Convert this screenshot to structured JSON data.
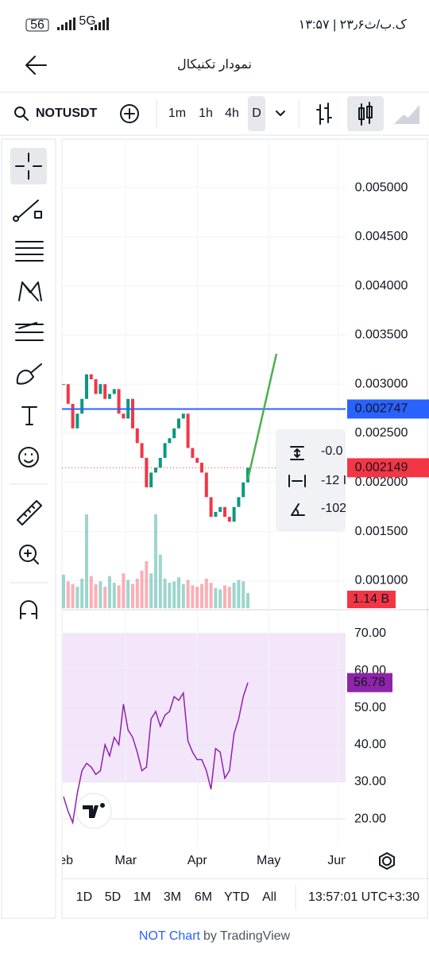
{
  "status_bar": {
    "battery": "56",
    "network": "5G",
    "time": "۱۳:۵۷ | ۲۳٫۶ک.ب/ث"
  },
  "header": {
    "title": "نمودار تکنیکال"
  },
  "toolbar": {
    "symbol": "NOTUSDT",
    "intervals": [
      "1m",
      "1h",
      "4h",
      "D"
    ]
  },
  "measure": [
    "-0.0",
    "-12 I",
    "-102"
  ],
  "range_bar": {
    "ranges": [
      "1D",
      "5D",
      "1M",
      "3M",
      "6M",
      "YTD",
      "All"
    ],
    "clock": "13:57:01 UTC+3:30"
  },
  "footer": {
    "brand": "NOT Chart",
    "by": "by TradingView"
  },
  "chart_data": {
    "type": "candlestick",
    "values": [
      0.003,
      0.0028,
      0.00255,
      0.0027,
      0.00285,
      0.0031,
      0.00305,
      0.0029,
      0.003,
      0.00285,
      0.0029,
      0.00295,
      0.0027,
      0.00265,
      0.00285,
      0.00255,
      0.0024,
      0.00225,
      0.00195,
      0.0021,
      0.00215,
      0.00225,
      0.0024,
      0.00245,
      0.00255,
      0.00265,
      0.0027,
      0.00235,
      0.00225,
      0.0022,
      0.0021,
      0.00185,
      0.00165,
      0.0017,
      0.00175,
      0.00165,
      0.0016,
      0.00175,
      0.00185,
      0.002,
      0.00215
    ],
    "up_color": "#089981",
    "down_color": "#f23645",
    "xlim": [
      -0.34,
      61.2
    ],
    "xticks": [
      {
        "value": -0.3,
        "label": "Feb"
      },
      {
        "value": 13.5,
        "label": "Mar"
      },
      {
        "value": 29,
        "label": "Apr"
      },
      {
        "value": 44.5,
        "label": "May"
      },
      {
        "value": 59.5,
        "label": "Jun"
      }
    ],
    "ylim": [
      0.00072,
      0.005494
    ],
    "yticks": [
      {
        "value": 0.001,
        "label": "0.001000"
      },
      {
        "value": 0.0015,
        "label": "0.001500"
      },
      {
        "value": 0.002,
        "label": "0.002000"
      },
      {
        "value": 0.0025,
        "label": "0.002500"
      },
      {
        "value": 0.003,
        "label": "0.003000"
      },
      {
        "value": 0.0035,
        "label": "0.003500"
      },
      {
        "value": 0.004,
        "label": "0.004000"
      },
      {
        "value": 0.0045,
        "label": "0.004500"
      },
      {
        "value": 0.005,
        "label": "0.005000"
      }
    ],
    "grid": true,
    "level": {
      "value": 0.002747,
      "color": "#2962ff"
    },
    "last_price": {
      "value": 0.002149,
      "color": "#f23645"
    },
    "volume": {
      "values": [
        2.5,
        2,
        1.8,
        1.6,
        2.2,
        7,
        2.4,
        1.8,
        2,
        1.6,
        2.4,
        1.9,
        1.7,
        2.6,
        2.1,
        1.8,
        2.2,
        2.8,
        3.5,
        2.6,
        7,
        4,
        2.2,
        1.9,
        2,
        2.3,
        1.8,
        2.1,
        1.7,
        1.6,
        1.8,
        2.2,
        1.9,
        1.5,
        1.4,
        1.7,
        1.6,
        1.9,
        2.1,
        2,
        1.14
      ],
      "ylim": [
        0,
        35
      ],
      "value_label": "1.14 B"
    },
    "rsi": {
      "values": [
        26,
        22,
        19,
        27,
        33,
        35,
        34,
        32,
        33,
        40,
        37,
        42,
        40,
        51,
        44,
        42,
        38,
        33,
        34,
        47,
        49,
        45,
        48,
        49,
        53,
        52,
        54,
        41,
        38,
        36,
        36,
        33,
        28,
        39,
        38,
        31,
        33,
        43,
        47,
        53,
        56.78
      ],
      "color": "#8e24aa",
      "band": [
        30,
        70
      ],
      "ylim": [
        12.5,
        75.8
      ],
      "yticks": [
        {
          "value": 20,
          "label": "20.00"
        },
        {
          "value": 30,
          "label": "30.00"
        },
        {
          "value": 40,
          "label": "40.00"
        },
        {
          "value": 50,
          "label": "50.00"
        },
        {
          "value": 60,
          "label": "60.00"
        },
        {
          "value": 70,
          "label": "70.00"
        }
      ]
    }
  }
}
